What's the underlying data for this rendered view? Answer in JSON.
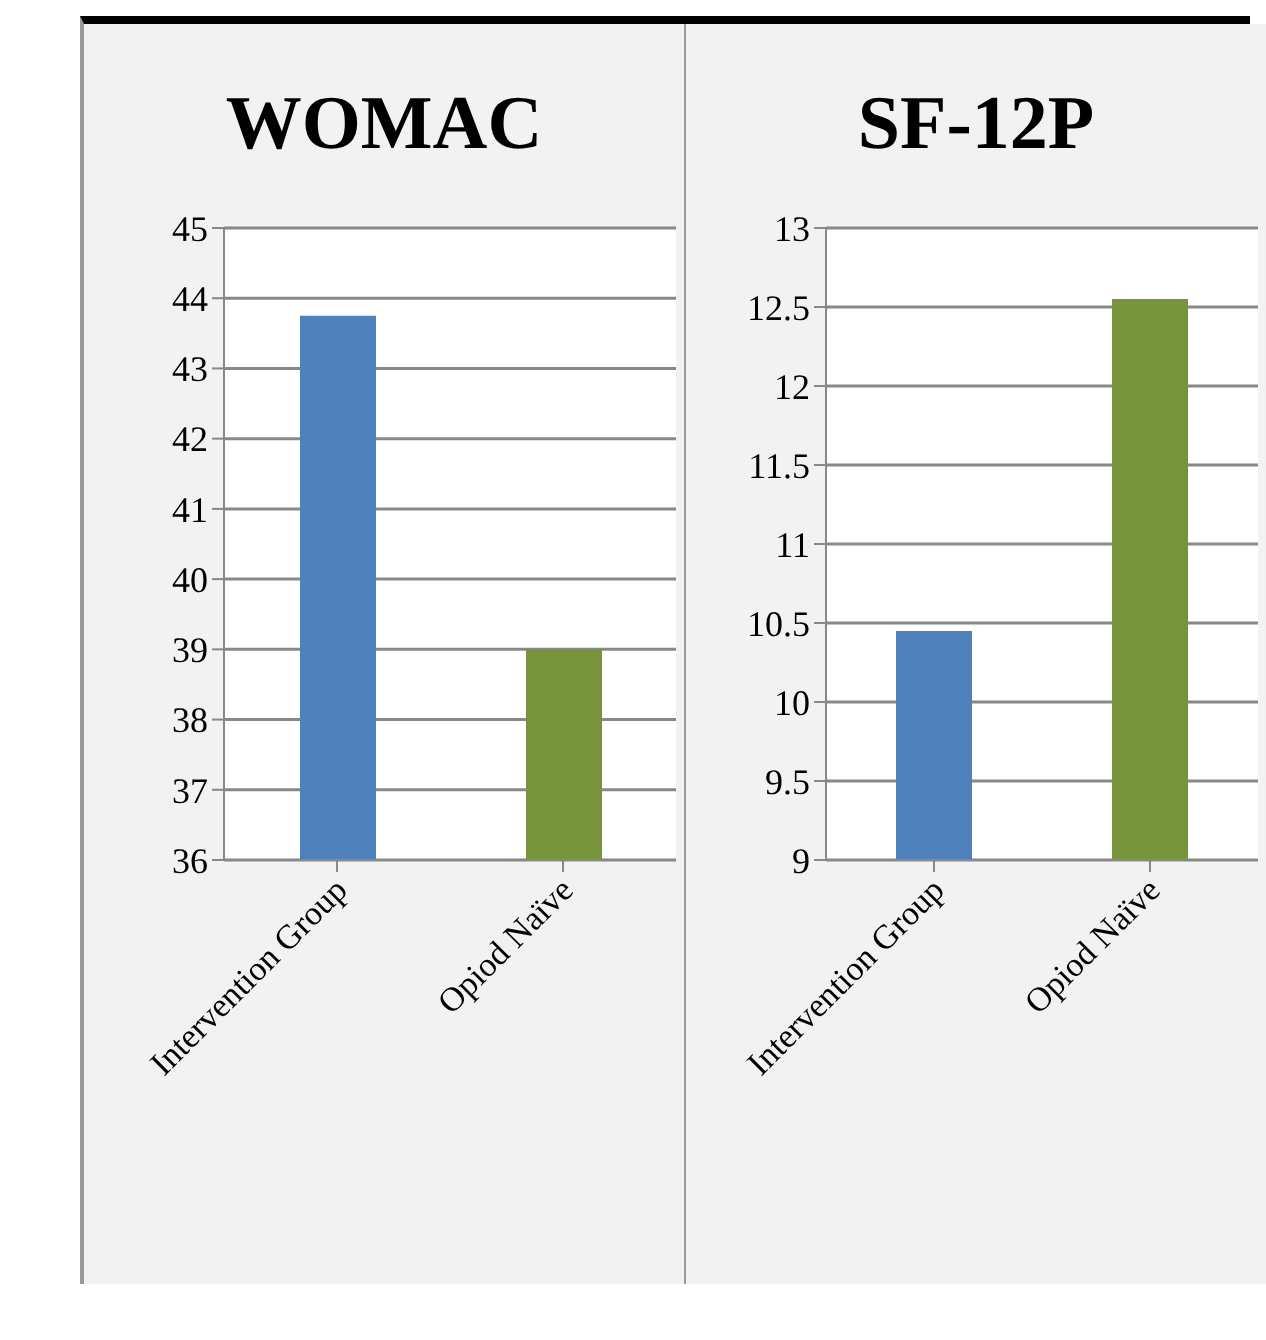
{
  "chart_data": [
    {
      "type": "bar",
      "title": "WOMAC",
      "categories": [
        "Intervention Group",
        "Opiod Naïve"
      ],
      "values": [
        43.75,
        39.0
      ],
      "colors": [
        "#4f81bd",
        "#77933c"
      ],
      "ylim": [
        36,
        45
      ],
      "yticks": [
        36,
        37,
        38,
        39,
        40,
        41,
        42,
        43,
        44,
        45
      ],
      "grid": "y"
    },
    {
      "type": "bar",
      "title": "SF-12P",
      "categories": [
        "Intervention Group",
        "Opiod Naïve"
      ],
      "values": [
        10.45,
        12.55
      ],
      "colors": [
        "#4f81bd",
        "#77933c"
      ],
      "ylim": [
        9,
        13
      ],
      "yticks": [
        9,
        9.5,
        10,
        10.5,
        11,
        11.5,
        12,
        12.5,
        13
      ],
      "grid": "y"
    }
  ]
}
